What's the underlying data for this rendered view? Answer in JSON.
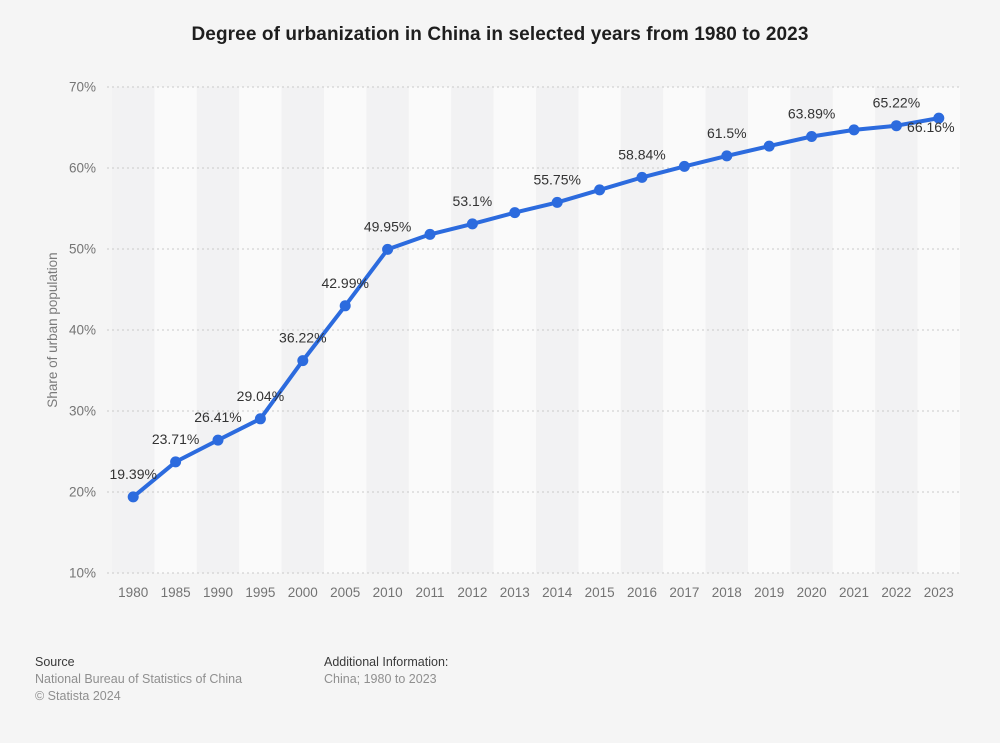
{
  "title": "Degree of urbanization in China in selected years from 1980 to 2023",
  "footer": {
    "source_label": "Source",
    "source_name": "National Bureau of Statistics of China",
    "copyright": "© Statista 2024",
    "additional_info_label": "Additional Information:",
    "additional_info_value": "China; 1980 to 2023"
  },
  "chart_data": {
    "type": "line",
    "title": "Degree of urbanization in China in selected years from 1980 to 2023",
    "xlabel": "",
    "ylabel": "Share of urban population",
    "ylim": [
      10,
      70
    ],
    "y_ticks": [
      10,
      20,
      30,
      40,
      50,
      60,
      70
    ],
    "y_tick_suffix": "%",
    "grid": "dotted-horizontal",
    "legend": "none",
    "categories": [
      "1980",
      "1985",
      "1990",
      "1995",
      "2000",
      "2005",
      "2010",
      "2011",
      "2012",
      "2013",
      "2014",
      "2015",
      "2016",
      "2017",
      "2018",
      "2019",
      "2020",
      "2021",
      "2022",
      "2023"
    ],
    "series": [
      {
        "name": "Share of urban population",
        "values": [
          19.39,
          23.71,
          26.41,
          29.04,
          36.22,
          42.99,
          49.95,
          51.8,
          53.1,
          54.5,
          55.75,
          57.3,
          58.84,
          60.2,
          61.5,
          62.7,
          63.89,
          64.7,
          65.22,
          66.16
        ],
        "point_labels": [
          "19.39%",
          "23.71%",
          "26.41%",
          "29.04%",
          "36.22%",
          "42.99%",
          "49.95%",
          "",
          "53.1%",
          "",
          "55.75%",
          "",
          "58.84%",
          "",
          "61.5%",
          "",
          "63.89%",
          "",
          "65.22%",
          "66.16%"
        ]
      }
    ],
    "last_label_position": "below-right",
    "colors": {
      "line": "#2c6bde",
      "marker": "#2c6bde",
      "gridline": "#c9c9c9",
      "tick_text": "#757575",
      "x_tick_text": "#737373",
      "data_label_text": "#333333",
      "axis_title_text": "#7a7a7a",
      "band_even": "#f2f2f3",
      "band_odd": "#fafafa",
      "page_background": "#f5f5f5"
    }
  }
}
